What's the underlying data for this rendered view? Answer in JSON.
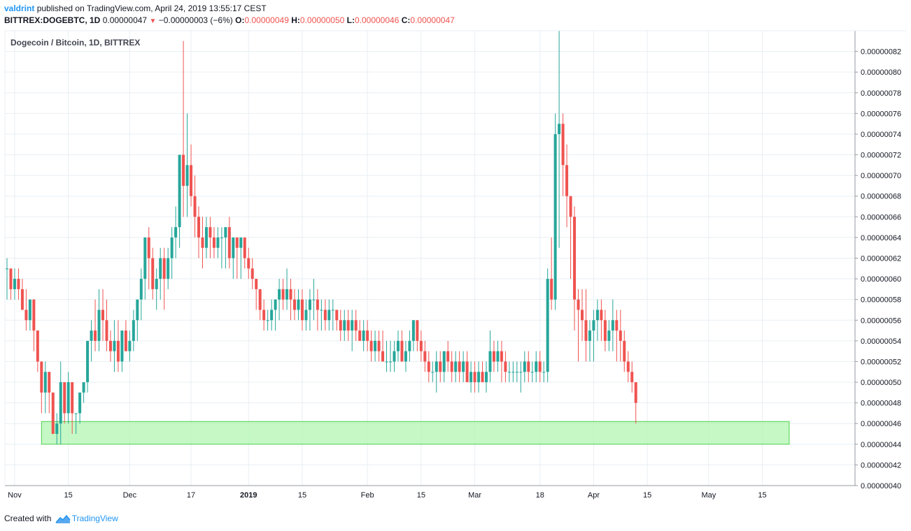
{
  "header": {
    "author": "valdrint",
    "published": "published on TradingView.com, April 24, 2019 13:55:17 CEST",
    "symbol": "BITTREX:DOGEBTC, 1D",
    "price": "0.00000047",
    "change": "−0.00000003 (−6%)",
    "o_label": "O:",
    "o": "0.00000049",
    "h_label": "H:",
    "h": "0.00000050",
    "l_label": "L:",
    "l": "0.00000046",
    "c_label": "C:",
    "c": "0.00000047"
  },
  "footer": {
    "created": "Created with",
    "brand": "TradingView"
  },
  "chart_data": {
    "type": "candlestick",
    "title": "Dogecoin / Bitcoin, 1D, BITTREX",
    "ylim": [
      4e-07,
      8.4e-07
    ],
    "y_ticks": [
      "0.00000082",
      "0.00000080",
      "0.00000078",
      "0.00000076",
      "0.00000074",
      "0.00000072",
      "0.00000070",
      "0.00000068",
      "0.00000066",
      "0.00000064",
      "0.00000062",
      "0.00000060",
      "0.00000058",
      "0.00000056",
      "0.00000054",
      "0.00000052",
      "0.00000050",
      "0.00000048",
      "0.00000046",
      "0.00000044",
      "0.00000042",
      "0.00000040"
    ],
    "x_start": "2018-10-30",
    "x_ticks": [
      {
        "label": "Nov",
        "date": "2018-11-01",
        "bold": false
      },
      {
        "label": "15",
        "date": "2018-11-15",
        "bold": false
      },
      {
        "label": "Dec",
        "date": "2018-12-01",
        "bold": false
      },
      {
        "label": "17",
        "date": "2018-12-17",
        "bold": false
      },
      {
        "label": "2019",
        "date": "2019-01-01",
        "bold": true
      },
      {
        "label": "15",
        "date": "2019-01-15",
        "bold": false
      },
      {
        "label": "Feb",
        "date": "2019-02-01",
        "bold": false
      },
      {
        "label": "15",
        "date": "2019-02-15",
        "bold": false
      },
      {
        "label": "Mar",
        "date": "2019-03-01",
        "bold": false
      },
      {
        "label": "18",
        "date": "2019-03-18",
        "bold": false
      },
      {
        "label": "Apr",
        "date": "2019-04-01",
        "bold": false
      },
      {
        "label": "15",
        "date": "2019-04-15",
        "bold": false
      },
      {
        "label": "May",
        "date": "2019-05-01",
        "bold": false
      },
      {
        "label": "15",
        "date": "2019-05-15",
        "bold": false
      }
    ],
    "support_zone": {
      "from_date": "2018-11-08",
      "to_date": "2019-05-22",
      "low": 4.4e-07,
      "high": 4.62e-07,
      "color": "#b2f5b2"
    },
    "colors": {
      "up": "#26a69a",
      "down": "#ef5350",
      "grid": "#e9eff3",
      "axis": "#9598a1",
      "text": "#131722"
    },
    "candles_ohlc_e8": [
      [
        61,
        62,
        58,
        61
      ],
      [
        61,
        61,
        58,
        59
      ],
      [
        59,
        61,
        58,
        60
      ],
      [
        60,
        61,
        58,
        59
      ],
      [
        59,
        60,
        57,
        57
      ],
      [
        57,
        59,
        55,
        56
      ],
      [
        56,
        58,
        55,
        58
      ],
      [
        58,
        58,
        53,
        55
      ],
      [
        55,
        55,
        51,
        52
      ],
      [
        52,
        52,
        47,
        49
      ],
      [
        49,
        52,
        47,
        51
      ],
      [
        51,
        51,
        47,
        49
      ],
      [
        49,
        49,
        45,
        45
      ],
      [
        45,
        47,
        44,
        46
      ],
      [
        46,
        52,
        44,
        50
      ],
      [
        50,
        50,
        46,
        47
      ],
      [
        47,
        51,
        46,
        50
      ],
      [
        50,
        50,
        45,
        47
      ],
      [
        47,
        47,
        45,
        47
      ],
      [
        47,
        49,
        46,
        49
      ],
      [
        49,
        50,
        48,
        50
      ],
      [
        50,
        54,
        49,
        54
      ],
      [
        54,
        56,
        52,
        55
      ],
      [
        55,
        58,
        53,
        54
      ],
      [
        54,
        59,
        53,
        57
      ],
      [
        57,
        59,
        54,
        56
      ],
      [
        56,
        58,
        53,
        54
      ],
      [
        54,
        55,
        52,
        53
      ],
      [
        53,
        56,
        51,
        54
      ],
      [
        54,
        56,
        51,
        52
      ],
      [
        52,
        55,
        51,
        55
      ],
      [
        55,
        56,
        53,
        53
      ],
      [
        53,
        55,
        52,
        54
      ],
      [
        54,
        57,
        53,
        56
      ],
      [
        56,
        58,
        54,
        58
      ],
      [
        58,
        61,
        56,
        60
      ],
      [
        60,
        64,
        58,
        64
      ],
      [
        64,
        65,
        59,
        62
      ],
      [
        62,
        63,
        58,
        59
      ],
      [
        59,
        61,
        57,
        60
      ],
      [
        60,
        63,
        58,
        62
      ],
      [
        62,
        63,
        57,
        60
      ],
      [
        60,
        63,
        59,
        62
      ],
      [
        62,
        65,
        60,
        64
      ],
      [
        64,
        67,
        62,
        65
      ],
      [
        65,
        72,
        63,
        72
      ],
      [
        72,
        83,
        66,
        69
      ],
      [
        69,
        76,
        66,
        71
      ],
      [
        71,
        73,
        67,
        68
      ],
      [
        68,
        70,
        64,
        66
      ],
      [
        66,
        67,
        62,
        64
      ],
      [
        64,
        66,
        61,
        63
      ],
      [
        63,
        66,
        62,
        65
      ],
      [
        65,
        66,
        62,
        64
      ],
      [
        64,
        65,
        62,
        63
      ],
      [
        63,
        65,
        62,
        64
      ],
      [
        64,
        65,
        61,
        64
      ],
      [
        64,
        65,
        61,
        65
      ],
      [
        65,
        66,
        61,
        62
      ],
      [
        62,
        64,
        60,
        64
      ],
      [
        64,
        64,
        60,
        63
      ],
      [
        63,
        64,
        60,
        64
      ],
      [
        64,
        64,
        61,
        62
      ],
      [
        62,
        63,
        60,
        61
      ],
      [
        61,
        62,
        59,
        60
      ],
      [
        60,
        60,
        57,
        59
      ],
      [
        59,
        59,
        56,
        57
      ],
      [
        57,
        58,
        55,
        56
      ],
      [
        56,
        57,
        55,
        56
      ],
      [
        56,
        58,
        55,
        57
      ],
      [
        57,
        58,
        55,
        58
      ],
      [
        58,
        60,
        56,
        59
      ],
      [
        59,
        60,
        57,
        58
      ],
      [
        58,
        61,
        57,
        59
      ],
      [
        59,
        60,
        56,
        58
      ],
      [
        58,
        59,
        56,
        57
      ],
      [
        57,
        59,
        56,
        58
      ],
      [
        58,
        59,
        55,
        56
      ],
      [
        56,
        58,
        55,
        57
      ],
      [
        57,
        59,
        55,
        58
      ],
      [
        58,
        60,
        56,
        58
      ],
      [
        58,
        59,
        55,
        57
      ],
      [
        57,
        58,
        55,
        57
      ],
      [
        57,
        58,
        55,
        56
      ],
      [
        56,
        58,
        55,
        57
      ],
      [
        57,
        58,
        55,
        57
      ],
      [
        57,
        57,
        55,
        56
      ],
      [
        56,
        57,
        54,
        55
      ],
      [
        55,
        57,
        54,
        56
      ],
      [
        56,
        57,
        54,
        55
      ],
      [
        55,
        57,
        53,
        56
      ],
      [
        56,
        57,
        54,
        55
      ],
      [
        55,
        56,
        54,
        54
      ],
      [
        54,
        56,
        53,
        55
      ],
      [
        55,
        56,
        53,
        54
      ],
      [
        54,
        55,
        52,
        53
      ],
      [
        53,
        55,
        52,
        54
      ],
      [
        54,
        55,
        52,
        53
      ],
      [
        53,
        55,
        52,
        52
      ],
      [
        52,
        54,
        51,
        52
      ],
      [
        52,
        54,
        51,
        52
      ],
      [
        52,
        54,
        51,
        53
      ],
      [
        53,
        55,
        52,
        54
      ],
      [
        54,
        55,
        52,
        52
      ],
      [
        52,
        54,
        51,
        53
      ],
      [
        53,
        55,
        52,
        54
      ],
      [
        54,
        56,
        53,
        56
      ],
      [
        56,
        56,
        53,
        54
      ],
      [
        54,
        55,
        52,
        53
      ],
      [
        53,
        54,
        51,
        52
      ],
      [
        52,
        53,
        50,
        51
      ],
      [
        51,
        52,
        50,
        51
      ],
      [
        51,
        53,
        49,
        52
      ],
      [
        52,
        53,
        50,
        51
      ],
      [
        51,
        53,
        50,
        53
      ],
      [
        53,
        54,
        51,
        52
      ],
      [
        52,
        53,
        50,
        51
      ],
      [
        51,
        53,
        50,
        52
      ],
      [
        52,
        53,
        50,
        51
      ],
      [
        51,
        53,
        50,
        52
      ],
      [
        52,
        53,
        50,
        50
      ],
      [
        50,
        52,
        49,
        51
      ],
      [
        51,
        52,
        49,
        50
      ],
      [
        50,
        52,
        49,
        51
      ],
      [
        51,
        52,
        50,
        50
      ],
      [
        50,
        52,
        49,
        51
      ],
      [
        51,
        55,
        50,
        53
      ],
      [
        53,
        54,
        51,
        52
      ],
      [
        52,
        54,
        51,
        53
      ],
      [
        53,
        54,
        50,
        52
      ],
      [
        52,
        53,
        50,
        51
      ],
      [
        51,
        52,
        50,
        51
      ],
      [
        51,
        52,
        50,
        51
      ],
      [
        51,
        52,
        50,
        51
      ],
      [
        51,
        52,
        49,
        51
      ],
      [
        51,
        53,
        50,
        52
      ],
      [
        52,
        53,
        50,
        51
      ],
      [
        51,
        52,
        50,
        51
      ],
      [
        51,
        53,
        50,
        52
      ],
      [
        52,
        53,
        50,
        51
      ],
      [
        51,
        52,
        50,
        51
      ],
      [
        51,
        61,
        50,
        60
      ],
      [
        60,
        64,
        57,
        58
      ],
      [
        58,
        76,
        57,
        74
      ],
      [
        74,
        84,
        63,
        75
      ],
      [
        75,
        76,
        68,
        71
      ],
      [
        71,
        73,
        65,
        68
      ],
      [
        68,
        68,
        60,
        66
      ],
      [
        66,
        67,
        55,
        58
      ],
      [
        58,
        59,
        52,
        57
      ],
      [
        57,
        59,
        54,
        56
      ],
      [
        56,
        59,
        52,
        54
      ],
      [
        54,
        56,
        52,
        55
      ],
      [
        55,
        57,
        52,
        56
      ],
      [
        56,
        58,
        54,
        57
      ],
      [
        57,
        58,
        54,
        56
      ],
      [
        56,
        57,
        53,
        54
      ],
      [
        54,
        56,
        53,
        55
      ],
      [
        55,
        58,
        53,
        56
      ],
      [
        56,
        57,
        52,
        55
      ],
      [
        55,
        57,
        52,
        54
      ],
      [
        54,
        55,
        51,
        52
      ],
      [
        52,
        53,
        50,
        51
      ],
      [
        51,
        52,
        49,
        50
      ],
      [
        50,
        50,
        46,
        48
      ]
    ]
  }
}
